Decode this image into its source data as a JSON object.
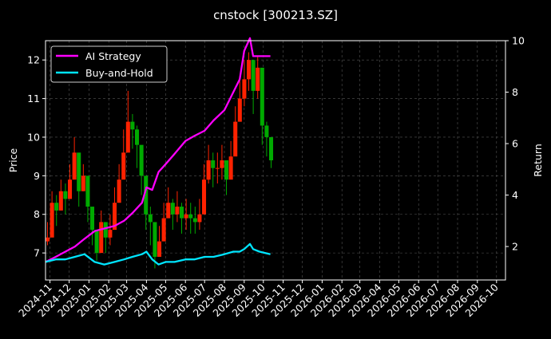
{
  "chart_data": {
    "type": "line",
    "title": "cnstock [300213.SZ]",
    "ylabel": "Price",
    "y2label": "Return",
    "ylim": [
      6.3,
      12.5
    ],
    "y2lim": [
      0.7,
      10
    ],
    "yticks": [
      7,
      8,
      9,
      10,
      11,
      12
    ],
    "y2ticks": [
      2,
      4,
      6,
      8,
      10
    ],
    "xlim": [
      "2024-10-25",
      "2026-10-15"
    ],
    "xticks": [
      "2024-11",
      "2024-12",
      "2025-01",
      "2025-02",
      "2025-03",
      "2025-04",
      "2025-05",
      "2025-06",
      "2025-07",
      "2025-08",
      "2025-09",
      "2025-10",
      "2025-11",
      "2025-12",
      "2026-01",
      "2026-02",
      "2026-03",
      "2026-04",
      "2026-05",
      "2026-06",
      "2026-07",
      "2026-08",
      "2026-09",
      "2026-10"
    ],
    "grid": true,
    "legend_position": "top-left",
    "colors": {
      "background": "#000000",
      "up": "#ff2200",
      "down": "#00aa00",
      "strategy": "#ff00ff",
      "buyhold": "#00e5ff",
      "grid": "#555555"
    },
    "price_candles": {
      "dates": [
        "2024-10-25",
        "2024-11-01",
        "2024-11-08",
        "2024-11-15",
        "2024-11-22",
        "2024-11-29",
        "2024-12-06",
        "2024-12-13",
        "2024-12-20",
        "2024-12-27",
        "2025-01-03",
        "2025-01-10",
        "2025-01-17",
        "2025-01-24",
        "2025-01-31",
        "2025-02-07",
        "2025-02-14",
        "2025-02-21",
        "2025-02-28",
        "2025-03-07",
        "2025-03-14",
        "2025-03-21",
        "2025-03-28",
        "2025-04-04",
        "2025-04-11",
        "2025-04-18",
        "2025-04-25",
        "2025-05-02",
        "2025-05-09",
        "2025-05-16",
        "2025-05-23",
        "2025-05-30",
        "2025-06-06",
        "2025-06-13",
        "2025-06-20",
        "2025-06-27",
        "2025-07-04",
        "2025-07-11",
        "2025-07-18",
        "2025-07-25",
        "2025-08-01",
        "2025-08-08",
        "2025-08-15",
        "2025-08-22",
        "2025-08-29",
        "2025-09-05",
        "2025-09-12",
        "2025-09-19",
        "2025-09-26",
        "2025-10-03",
        "2025-10-10"
      ],
      "close": [
        7.4,
        8.3,
        8.1,
        8.6,
        8.4,
        8.9,
        9.6,
        8.6,
        9.0,
        8.2,
        7.6,
        7.0,
        7.8,
        7.4,
        7.6,
        8.3,
        8.9,
        9.6,
        10.4,
        10.2,
        9.8,
        9.0,
        8.0,
        7.8,
        6.9,
        7.3,
        7.9,
        8.3,
        8.0,
        8.2,
        7.9,
        8.0,
        7.9,
        7.8,
        8.0,
        8.9,
        9.4,
        9.2,
        9.2,
        9.4,
        8.9,
        9.5,
        10.4,
        11.0,
        11.5,
        12.0,
        11.2,
        11.8,
        10.3,
        10.0,
        9.4
      ],
      "high": [
        7.8,
        8.6,
        8.5,
        8.9,
        8.8,
        9.3,
        10.0,
        9.0,
        9.3,
        8.6,
        7.9,
        7.4,
        8.1,
        7.8,
        8.0,
        8.7,
        9.3,
        10.2,
        11.2,
        10.6,
        10.3,
        9.4,
        8.4,
        8.2,
        7.3,
        7.7,
        8.3,
        8.7,
        8.4,
        8.6,
        8.3,
        8.4,
        8.3,
        8.2,
        8.4,
        9.3,
        9.8,
        9.6,
        9.6,
        9.8,
        9.3,
        9.9,
        10.8,
        11.5,
        12.0,
        12.2,
        11.8,
        12.1,
        10.9,
        10.4,
        9.8
      ],
      "low": [
        7.2,
        7.8,
        7.7,
        8.1,
        8.0,
        8.4,
        9.0,
        8.2,
        8.6,
        7.8,
        7.2,
        6.8,
        7.2,
        7.0,
        7.2,
        7.8,
        8.4,
        9.0,
        9.8,
        9.7,
        9.2,
        8.5,
        7.6,
        7.2,
        6.6,
        6.9,
        7.4,
        7.9,
        7.6,
        7.8,
        7.5,
        7.6,
        7.5,
        7.5,
        7.6,
        8.3,
        8.8,
        8.7,
        8.8,
        8.9,
        8.5,
        9.0,
        9.8,
        10.4,
        10.8,
        11.2,
        10.6,
        11.0,
        9.8,
        9.5,
        9.2
      ]
    },
    "series": [
      {
        "name": "AI Strategy",
        "x": [
          "2024-10-25",
          "2024-11-10",
          "2024-11-25",
          "2024-12-10",
          "2024-12-25",
          "2025-01-10",
          "2025-01-25",
          "2025-02-10",
          "2025-02-25",
          "2025-03-10",
          "2025-03-25",
          "2025-04-01",
          "2025-04-10",
          "2025-04-20",
          "2025-05-01",
          "2025-05-15",
          "2025-06-01",
          "2025-06-15",
          "2025-07-01",
          "2025-07-15",
          "2025-08-01",
          "2025-08-15",
          "2025-08-25",
          "2025-09-01",
          "2025-09-10",
          "2025-09-15",
          "2025-09-25",
          "2025-10-12"
        ],
        "y": [
          1.4,
          1.6,
          1.8,
          2.0,
          2.3,
          2.6,
          2.7,
          2.8,
          3.0,
          3.3,
          3.7,
          4.3,
          4.2,
          4.9,
          5.2,
          5.6,
          6.1,
          6.3,
          6.5,
          6.9,
          7.3,
          8.0,
          8.5,
          9.6,
          10.1,
          9.4,
          9.4,
          9.4
        ]
      },
      {
        "name": "Buy-and-Hold",
        "x": [
          "2024-10-25",
          "2024-11-10",
          "2024-11-25",
          "2024-12-10",
          "2024-12-25",
          "2025-01-10",
          "2025-01-25",
          "2025-02-10",
          "2025-02-25",
          "2025-03-10",
          "2025-03-25",
          "2025-04-01",
          "2025-04-10",
          "2025-04-20",
          "2025-05-01",
          "2025-05-15",
          "2025-06-01",
          "2025-06-15",
          "2025-07-01",
          "2025-07-15",
          "2025-08-01",
          "2025-08-15",
          "2025-08-25",
          "2025-09-01",
          "2025-09-10",
          "2025-09-15",
          "2025-09-25",
          "2025-10-12"
        ],
        "y": [
          1.4,
          1.5,
          1.5,
          1.6,
          1.7,
          1.4,
          1.3,
          1.4,
          1.5,
          1.6,
          1.7,
          1.8,
          1.5,
          1.3,
          1.4,
          1.4,
          1.5,
          1.5,
          1.6,
          1.6,
          1.7,
          1.8,
          1.8,
          1.9,
          2.1,
          1.9,
          1.8,
          1.7
        ]
      }
    ]
  }
}
